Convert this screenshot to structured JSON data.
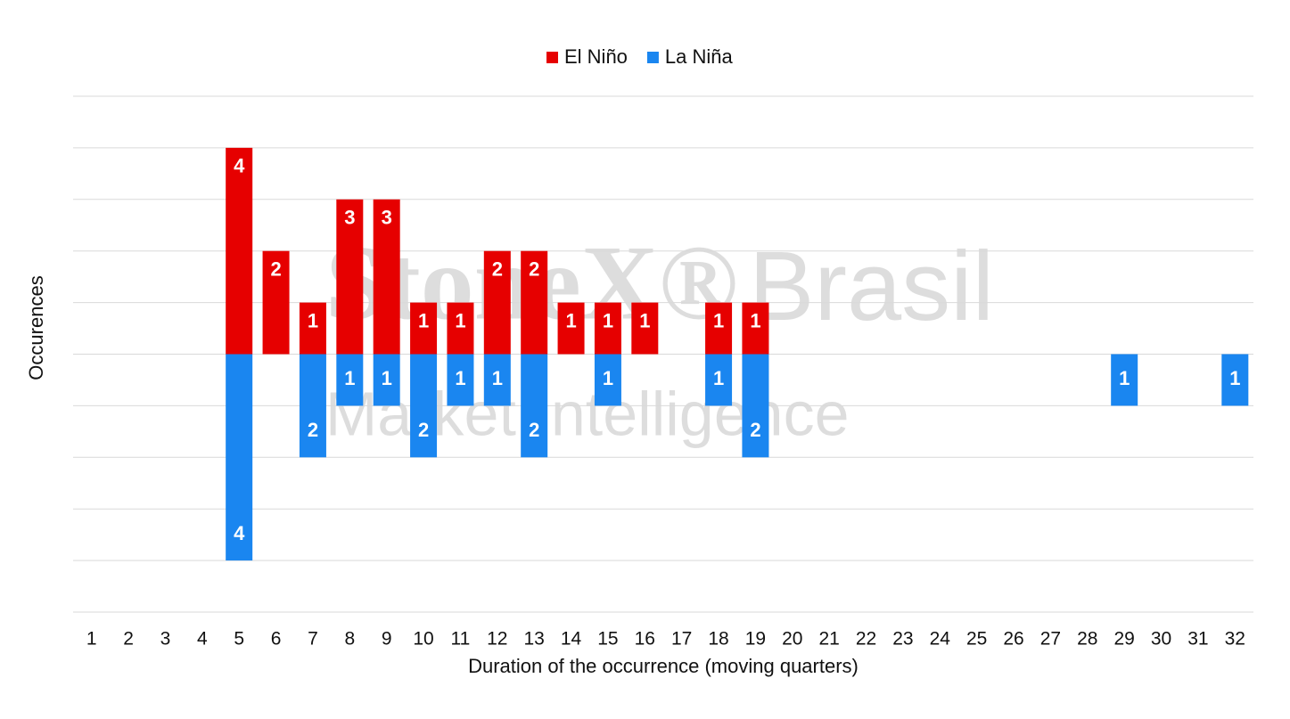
{
  "chart_data": {
    "type": "diverging-bar",
    "watermark": [
      "StoneX®",
      "Brasil",
      "Market Intelligence"
    ],
    "x_label": "Duration of the occurrence (moving quarters)",
    "y_label": "Occurences",
    "categories": [
      "1",
      "2",
      "3",
      "4",
      "5",
      "6",
      "7",
      "8",
      "9",
      "10",
      "11",
      "12",
      "13",
      "14",
      "15",
      "16",
      "17",
      "18",
      "19",
      "20",
      "21",
      "22",
      "23",
      "24",
      "25",
      "26",
      "27",
      "28",
      "29",
      "30",
      "31",
      "32"
    ],
    "series": [
      {
        "name": "El Niño",
        "color": "#e60000",
        "values": [
          null,
          null,
          null,
          null,
          4,
          2,
          1,
          3,
          3,
          1,
          1,
          2,
          2,
          1,
          1,
          1,
          null,
          1,
          1,
          null,
          null,
          null,
          null,
          null,
          null,
          null,
          null,
          null,
          null,
          null,
          null,
          null
        ]
      },
      {
        "name": "La Niña",
        "color": "#1a86f0",
        "values": [
          null,
          null,
          null,
          null,
          -4,
          null,
          -2,
          -1,
          -1,
          -2,
          -1,
          -1,
          -2,
          null,
          -1,
          null,
          null,
          -1,
          -2,
          null,
          null,
          null,
          null,
          null,
          null,
          null,
          null,
          null,
          -1,
          null,
          null,
          -1
        ],
        "value_labels": [
          null,
          null,
          null,
          null,
          "4",
          null,
          "2",
          "1",
          "1",
          "2",
          "1",
          "1",
          "2",
          null,
          "1",
          null,
          null,
          "1",
          "2",
          null,
          null,
          null,
          null,
          null,
          null,
          null,
          null,
          null,
          "1",
          null,
          null,
          "1"
        ]
      }
    ],
    "ylim": [
      -5,
      5
    ],
    "yticks": [
      -5,
      -4,
      -3,
      -2,
      -1,
      0,
      1,
      2,
      3,
      4,
      5
    ],
    "grid": true,
    "legend": "top"
  }
}
